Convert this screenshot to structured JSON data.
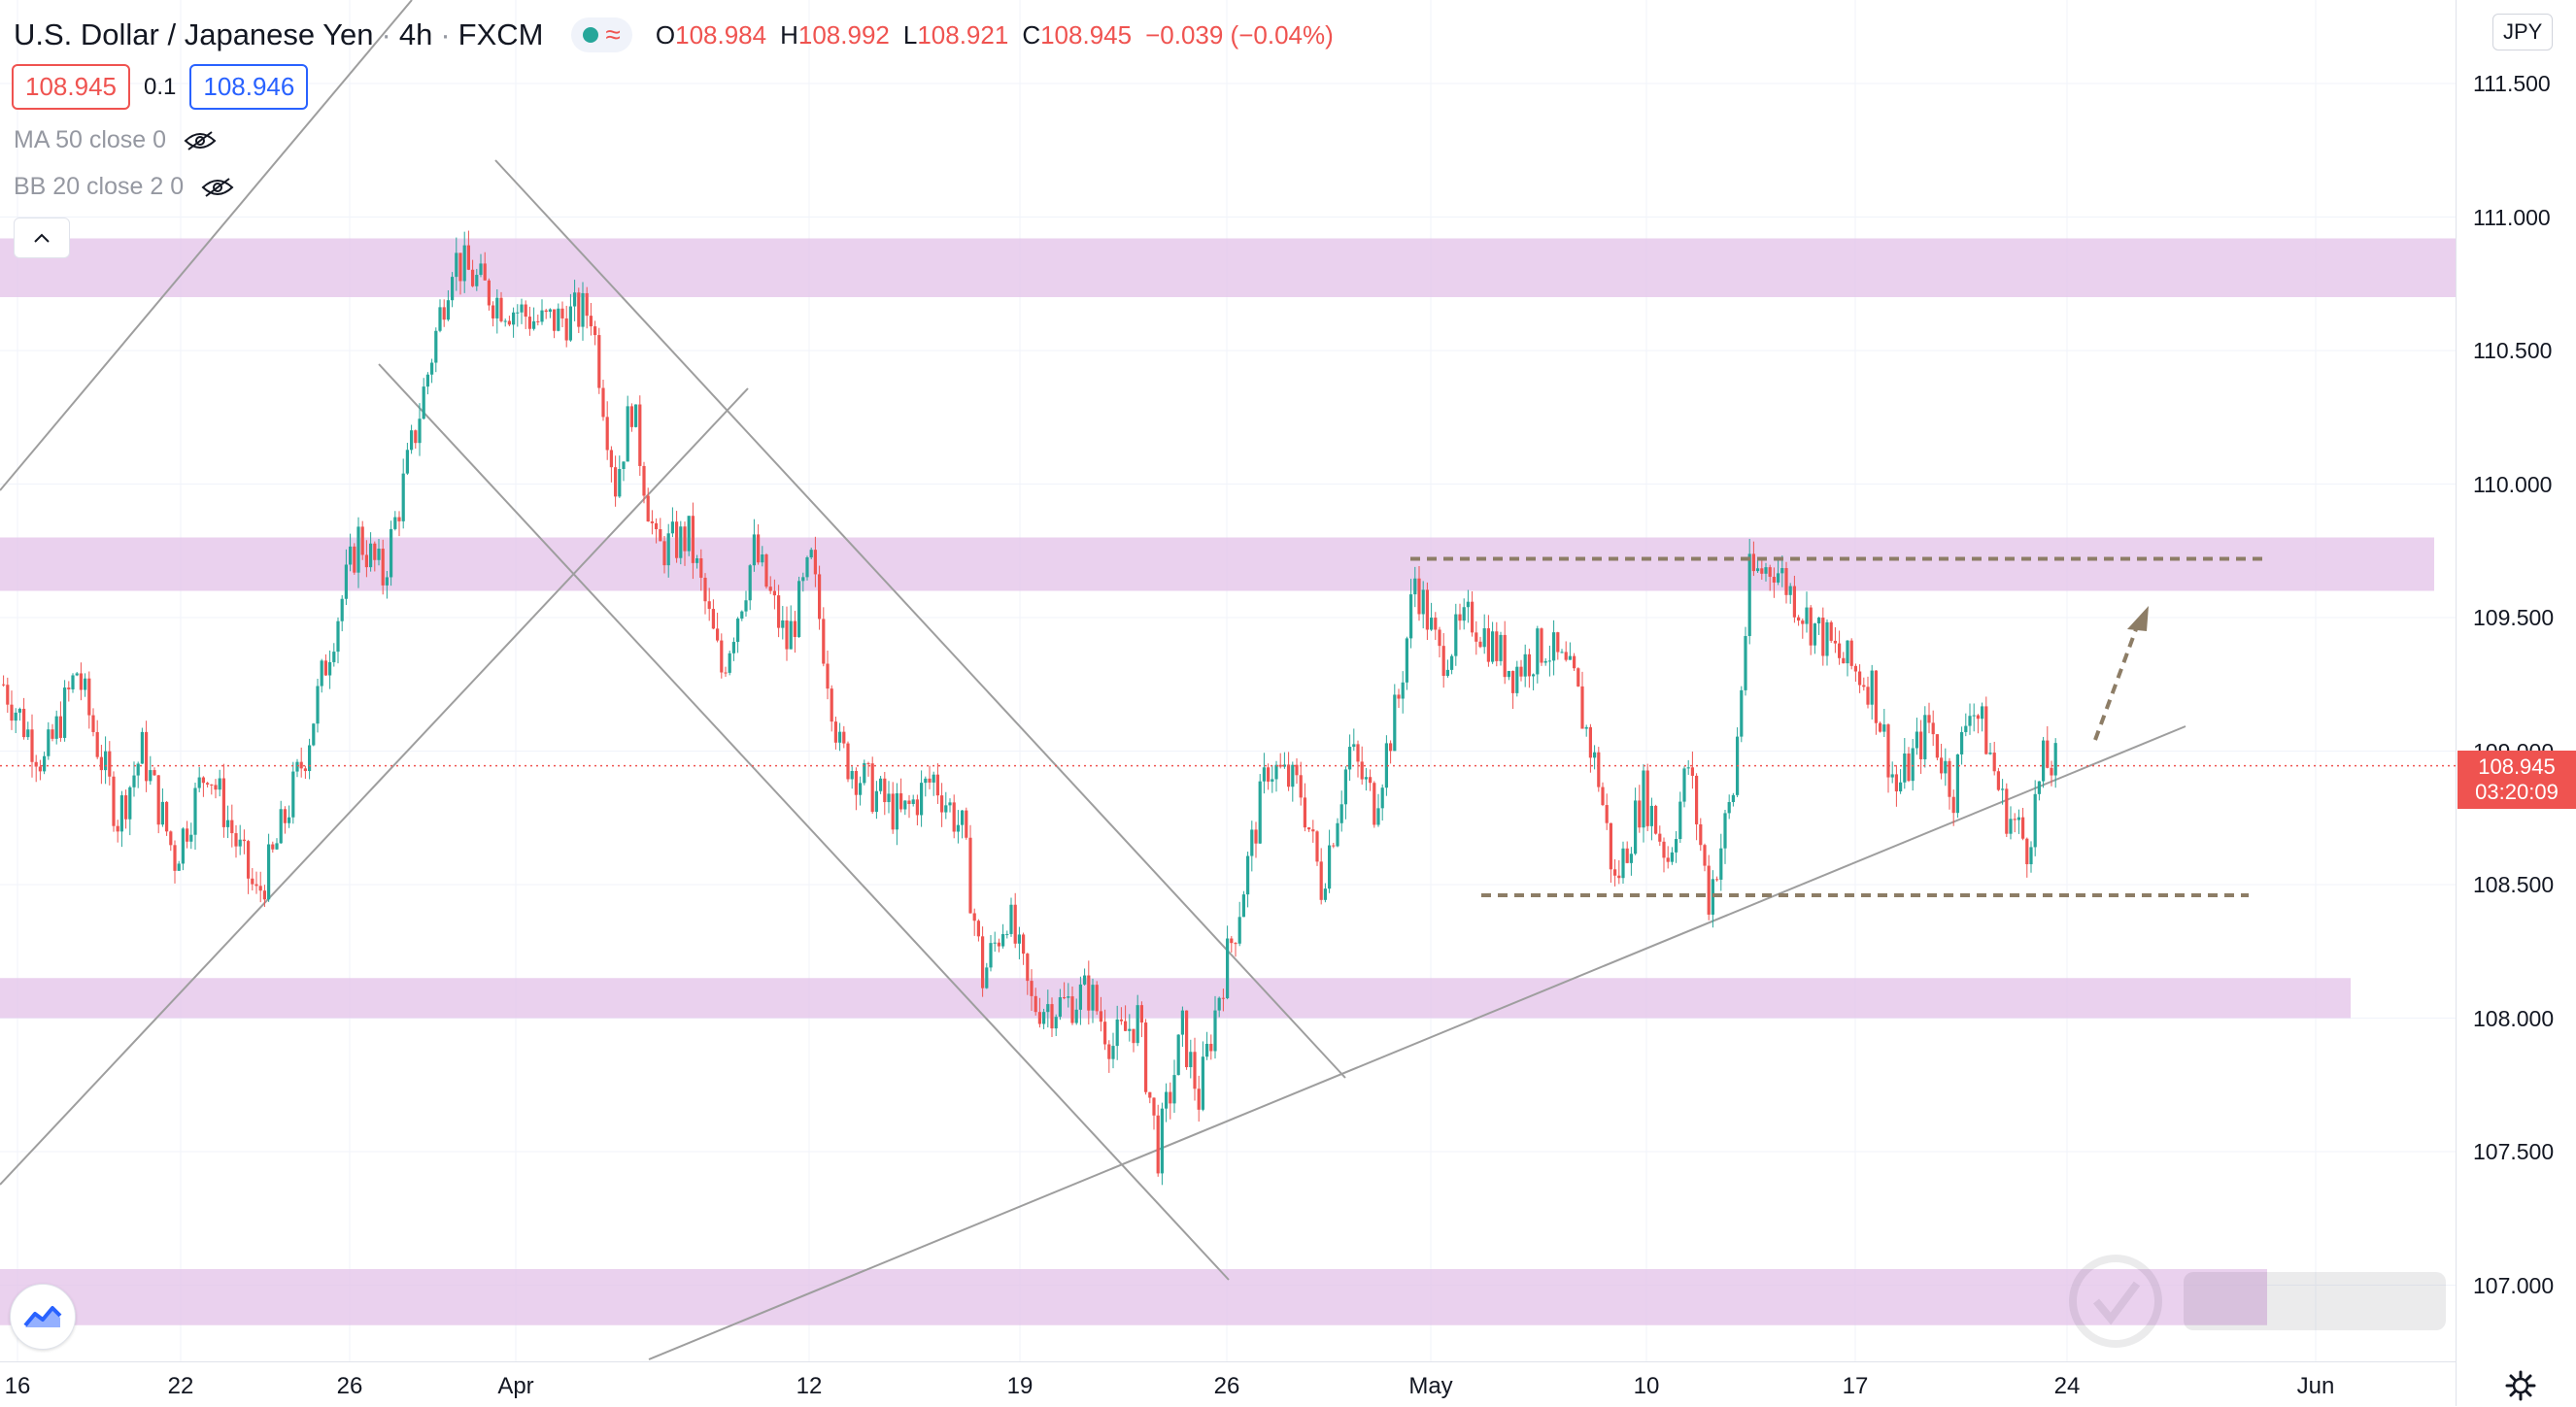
{
  "header": {
    "symbol": "U.S. Dollar / Japanese Yen",
    "timeframe": "4h",
    "exchange": "FXCM",
    "ohlc": {
      "o_label": "O",
      "o": "108.984",
      "h_label": "H",
      "h": "108.992",
      "l_label": "L",
      "l": "108.921",
      "c_label": "C",
      "c": "108.945",
      "change": "−0.039 (−0.04%)"
    }
  },
  "prices": {
    "sell": "108.945",
    "spread": "0.1",
    "buy": "108.946"
  },
  "indicators": [
    {
      "label": "MA 50 close 0"
    },
    {
      "label": "BB 20 close 2 0"
    }
  ],
  "currency_badge": "JPY",
  "price_label": {
    "price": "108.945",
    "countdown": "03:20:09"
  },
  "colors": {
    "up": "#26a69a",
    "down": "#ef5350",
    "zone": "#e1bee7",
    "trendline": "#9e9e9e",
    "dashed": "#8d7d66"
  },
  "chart_data": {
    "type": "candlestick",
    "y_axis": {
      "min": 106.9,
      "max": 111.65,
      "ticks": [
        "111.500",
        "111.000",
        "110.500",
        "110.000",
        "109.500",
        "109.000",
        "108.500",
        "108.000",
        "107.500",
        "107.000"
      ]
    },
    "x_axis": {
      "ticks": [
        "16",
        "22",
        "26",
        "Apr",
        "12",
        "19",
        "26",
        "May",
        "10",
        "17",
        "24",
        "Jun"
      ]
    },
    "last_price": 108.945,
    "zones": [
      {
        "from": 110.7,
        "to": 110.92
      },
      {
        "from": 109.6,
        "to": 109.8
      },
      {
        "from": 108.0,
        "to": 108.15
      },
      {
        "from": 106.85,
        "to": 107.06
      }
    ],
    "resistance_level": 109.72,
    "support_level": 108.46,
    "path": [
      [
        109.25,
        0
      ],
      [
        108.95,
        10
      ],
      [
        109.3,
        18
      ],
      [
        108.75,
        28
      ],
      [
        109.0,
        34
      ],
      [
        108.6,
        42
      ],
      [
        108.95,
        50
      ],
      [
        108.7,
        56
      ],
      [
        108.45,
        62
      ],
      [
        108.6,
        66
      ],
      [
        109.0,
        74
      ],
      [
        109.4,
        80
      ],
      [
        109.8,
        87
      ],
      [
        109.65,
        93
      ],
      [
        110.2,
        101
      ],
      [
        110.85,
        110
      ],
      [
        110.7,
        120
      ],
      [
        110.6,
        132
      ],
      [
        110.65,
        144
      ],
      [
        110.0,
        150
      ],
      [
        110.3,
        154
      ],
      [
        109.75,
        160
      ],
      [
        109.8,
        168
      ],
      [
        109.3,
        176
      ],
      [
        109.75,
        184
      ],
      [
        109.4,
        192
      ],
      [
        109.7,
        198
      ],
      [
        109.0,
        205
      ],
      [
        108.85,
        213
      ],
      [
        108.75,
        220
      ],
      [
        108.9,
        228
      ],
      [
        108.7,
        235
      ],
      [
        108.15,
        240
      ],
      [
        108.4,
        246
      ],
      [
        108.05,
        252
      ],
      [
        108.05,
        260
      ],
      [
        108.1,
        266
      ],
      [
        107.9,
        272
      ],
      [
        108.0,
        278
      ],
      [
        107.5,
        283
      ],
      [
        107.95,
        289
      ],
      [
        107.7,
        293
      ],
      [
        108.1,
        298
      ],
      [
        108.35,
        302
      ],
      [
        108.95,
        310
      ],
      [
        108.85,
        318
      ],
      [
        108.5,
        323
      ],
      [
        109.0,
        330
      ],
      [
        108.8,
        336
      ],
      [
        109.2,
        342
      ],
      [
        109.65,
        346
      ],
      [
        109.35,
        352
      ],
      [
        109.5,
        360
      ],
      [
        109.3,
        370
      ],
      [
        109.4,
        378
      ],
      [
        109.25,
        385
      ],
      [
        108.9,
        391
      ],
      [
        108.5,
        395
      ],
      [
        108.85,
        402
      ],
      [
        108.6,
        408
      ],
      [
        108.95,
        413
      ],
      [
        108.45,
        418
      ],
      [
        108.85,
        424
      ],
      [
        109.65,
        428
      ],
      [
        109.7,
        434
      ],
      [
        109.5,
        442
      ],
      [
        109.35,
        450
      ],
      [
        109.25,
        458
      ],
      [
        108.85,
        464
      ],
      [
        109.1,
        472
      ],
      [
        108.85,
        478
      ],
      [
        109.2,
        482
      ],
      [
        109.05,
        486
      ],
      [
        108.8,
        490
      ],
      [
        108.65,
        496
      ],
      [
        108.95,
        500
      ],
      [
        108.95,
        504
      ]
    ]
  }
}
